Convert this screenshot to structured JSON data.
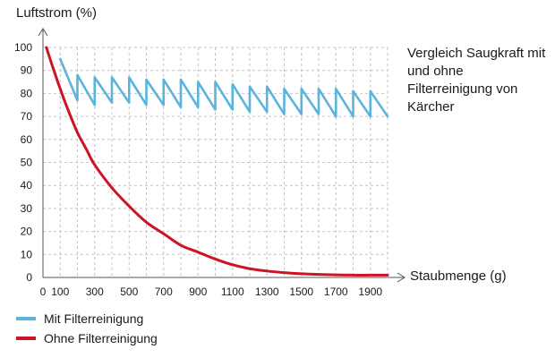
{
  "chart_data": {
    "type": "line",
    "title": "Vergleich Saugkraft mit und ohne Filterreinigung von Kärcher",
    "ylabel": "Luftstrom (%)",
    "xlabel": "Staubmenge (g)",
    "ylim": [
      0,
      100
    ],
    "xlim": [
      0,
      2000
    ],
    "yticks": [
      0,
      10,
      20,
      30,
      40,
      50,
      60,
      70,
      80,
      90,
      100
    ],
    "xticks": [
      0,
      100,
      300,
      500,
      700,
      900,
      1100,
      1300,
      1500,
      1700,
      1900
    ],
    "grid": "dashed",
    "legend": "bottom-left",
    "series": [
      {
        "name": "Mit Filterreinigung",
        "color": "#5ab4dc",
        "x": [
          100,
          200,
          200,
          300,
          300,
          400,
          400,
          500,
          500,
          600,
          600,
          700,
          700,
          800,
          800,
          900,
          900,
          1000,
          1000,
          1100,
          1100,
          1200,
          1200,
          1300,
          1300,
          1400,
          1400,
          1500,
          1500,
          1600,
          1600,
          1700,
          1700,
          1800,
          1800,
          1900,
          1900,
          2000
        ],
        "y": [
          95,
          77,
          88,
          75,
          87,
          76,
          87,
          76,
          87,
          75,
          86,
          75,
          86,
          74,
          86,
          74,
          85,
          73,
          85,
          73,
          84,
          72,
          83,
          72,
          83,
          71,
          82,
          71,
          82,
          71,
          82,
          70,
          82,
          70,
          81,
          70,
          81,
          70
        ]
      },
      {
        "name": "Ohne Filterreinigung",
        "color": "#cc1424",
        "x": [
          20,
          50,
          100,
          150,
          200,
          250,
          300,
          400,
          500,
          600,
          700,
          800,
          900,
          1000,
          1100,
          1200,
          1300,
          1400,
          1500,
          1600,
          1700,
          1800,
          1900,
          2000
        ],
        "y": [
          100,
          93,
          82,
          72,
          63,
          56,
          49,
          39,
          31,
          24,
          19,
          14,
          11,
          8,
          5.5,
          3.8,
          2.8,
          2.1,
          1.6,
          1.3,
          1.1,
          1,
          1,
          1
        ]
      }
    ]
  }
}
